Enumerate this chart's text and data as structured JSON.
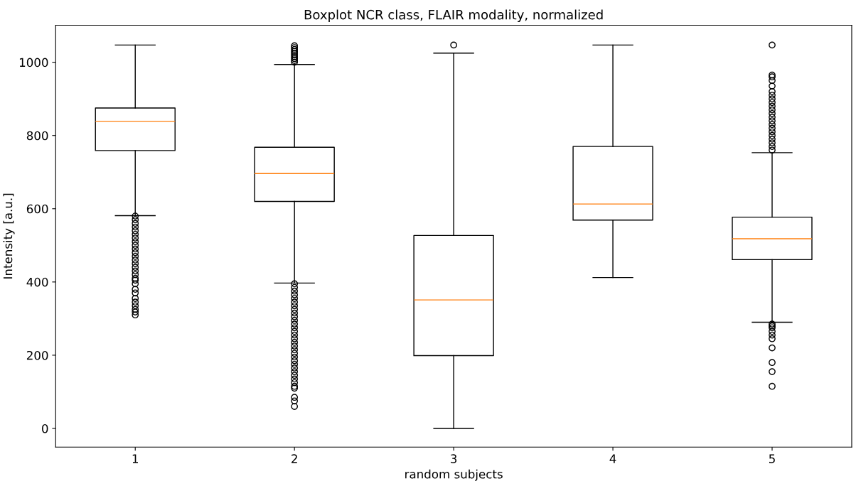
{
  "chart_data": {
    "type": "box",
    "title": "Boxplot NCR class, FLAIR modality, normalized",
    "xlabel": "random subjects",
    "ylabel": "Intensity [a.u.]",
    "categories": [
      "1",
      "2",
      "3",
      "4",
      "5"
    ],
    "ylim": [
      -51,
      1101
    ],
    "yticks": [
      0,
      200,
      400,
      600,
      800,
      1000
    ],
    "grid": false,
    "boxes": [
      {
        "low": 581,
        "q1": 759,
        "median": 839,
        "q3": 875,
        "high": 1047,
        "outliers": [
          580,
          570,
          560,
          550,
          540,
          530,
          520,
          510,
          500,
          490,
          480,
          470,
          460,
          450,
          440,
          430,
          420,
          410,
          405,
          395,
          380,
          370,
          355,
          345,
          335,
          325,
          318,
          310
        ]
      },
      {
        "low": 397,
        "q1": 620,
        "median": 696,
        "q3": 768,
        "high": 994,
        "outliers": [
          1000,
          1005,
          1010,
          1015,
          1020,
          1025,
          1030,
          1035,
          1040,
          1045,
          395,
          385,
          375,
          365,
          355,
          345,
          335,
          325,
          315,
          305,
          295,
          285,
          275,
          265,
          255,
          245,
          235,
          225,
          215,
          205,
          195,
          185,
          175,
          165,
          155,
          145,
          135,
          125,
          115,
          110,
          85,
          75,
          60
        ]
      },
      {
        "low": 0,
        "q1": 199,
        "median": 351,
        "q3": 527,
        "high": 1025,
        "outliers": [
          1047
        ]
      },
      {
        "low": 412,
        "q1": 569,
        "median": 613,
        "q3": 770,
        "high": 1047
      },
      {
        "low": 290,
        "q1": 461,
        "median": 518,
        "q3": 577,
        "high": 753,
        "outliers": [
          760,
          770,
          780,
          790,
          800,
          810,
          820,
          830,
          840,
          850,
          860,
          870,
          880,
          890,
          900,
          910,
          920,
          935,
          950,
          960,
          965,
          1047,
          285,
          280,
          275,
          265,
          255,
          245,
          220,
          180,
          155,
          115
        ]
      }
    ]
  }
}
